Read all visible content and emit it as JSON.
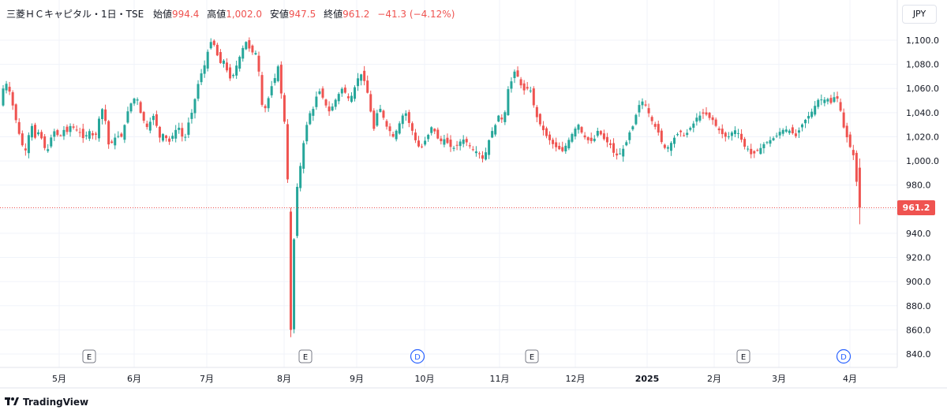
{
  "header": {
    "symbol": "三菱ＨＣキャピタル・1日・TSE",
    "open_label": "始値",
    "open": "994.4",
    "high_label": "高値",
    "high": "1,002.0",
    "low_label": "安値",
    "low": "947.5",
    "close_label": "終値",
    "close": "961.2",
    "change": "−41.3 (−4.12%)"
  },
  "currency": "JPY",
  "last_price": "961.2",
  "branding": "TradingView",
  "colors": {
    "up": "#26a69a",
    "down": "#ef5350",
    "grid": "#f0f3fa",
    "axis_text": "#131722",
    "event": "#787b86",
    "dividend": "#2962ff"
  },
  "chart_data": {
    "type": "candlestick",
    "y_ticks": [
      "1,100.0",
      "1,080.0",
      "1,060.0",
      "1,040.0",
      "1,020.0",
      "1,000.0",
      "980.0",
      "960.0",
      "940.0",
      "920.0",
      "900.0",
      "880.0",
      "860.0",
      "840.0"
    ],
    "ylim": [
      835,
      1108
    ],
    "x_ticks": [
      "5月",
      "6月",
      "7月",
      "8月",
      "9月",
      "10月",
      "11月",
      "12月",
      "2025",
      "2月",
      "3月",
      "4月"
    ],
    "last_price_line": 961.2,
    "path_points": [
      [
        0,
        1046
      ],
      [
        6,
        1060
      ],
      [
        10,
        1064
      ],
      [
        15,
        1056
      ],
      [
        20,
        1040
      ],
      [
        26,
        1023
      ],
      [
        30,
        1014
      ],
      [
        33,
        1004
      ],
      [
        37,
        1018
      ],
      [
        42,
        1030
      ],
      [
        47,
        1018
      ],
      [
        52,
        1026
      ],
      [
        57,
        1012
      ],
      [
        62,
        1008
      ],
      [
        67,
        1020
      ],
      [
        72,
        1026
      ],
      [
        77,
        1018
      ],
      [
        82,
        1026
      ],
      [
        87,
        1024
      ],
      [
        92,
        1030
      ],
      [
        97,
        1026
      ],
      [
        103,
        1024
      ],
      [
        108,
        1018
      ],
      [
        112,
        1022
      ],
      [
        117,
        1026
      ],
      [
        121,
        1018
      ],
      [
        125,
        1024
      ],
      [
        130,
        1046
      ],
      [
        135,
        1036
      ],
      [
        140,
        1012
      ],
      [
        145,
        1016
      ],
      [
        150,
        1022
      ],
      [
        155,
        1018
      ],
      [
        160,
        1030
      ],
      [
        165,
        1044
      ],
      [
        170,
        1050
      ],
      [
        175,
        1054
      ],
      [
        180,
        1040
      ],
      [
        185,
        1032
      ],
      [
        190,
        1026
      ],
      [
        195,
        1040
      ],
      [
        200,
        1030
      ],
      [
        205,
        1018
      ],
      [
        210,
        1024
      ],
      [
        215,
        1014
      ],
      [
        220,
        1020
      ],
      [
        225,
        1026
      ],
      [
        230,
        1028
      ],
      [
        235,
        1014
      ],
      [
        240,
        1030
      ],
      [
        245,
        1040
      ],
      [
        250,
        1054
      ],
      [
        255,
        1070
      ],
      [
        260,
        1076
      ],
      [
        265,
        1090
      ],
      [
        270,
        1100
      ],
      [
        275,
        1094
      ],
      [
        280,
        1080
      ],
      [
        285,
        1084
      ],
      [
        290,
        1074
      ],
      [
        295,
        1066
      ],
      [
        300,
        1076
      ],
      [
        305,
        1085
      ],
      [
        310,
        1094
      ],
      [
        315,
        1100
      ],
      [
        320,
        1088
      ],
      [
        325,
        1093
      ],
      [
        330,
        1074
      ],
      [
        335,
        1040
      ],
      [
        340,
        1046
      ],
      [
        345,
        1060
      ],
      [
        350,
        1068
      ],
      [
        355,
        1080
      ],
      [
        360,
        1044
      ],
      [
        365,
        1020
      ],
      [
        368,
        947
      ],
      [
        372,
        870
      ],
      [
        376,
        972
      ],
      [
        380,
        982
      ],
      [
        385,
        1008
      ],
      [
        390,
        1028
      ],
      [
        395,
        1040
      ],
      [
        400,
        1044
      ],
      [
        405,
        1060
      ],
      [
        410,
        1054
      ],
      [
        415,
        1046
      ],
      [
        420,
        1040
      ],
      [
        425,
        1048
      ],
      [
        430,
        1054
      ],
      [
        435,
        1060
      ],
      [
        440,
        1056
      ],
      [
        445,
        1050
      ],
      [
        450,
        1058
      ],
      [
        455,
        1068
      ],
      [
        460,
        1072
      ],
      [
        465,
        1064
      ],
      [
        470,
        1050
      ],
      [
        475,
        1024
      ],
      [
        480,
        1040
      ],
      [
        485,
        1044
      ],
      [
        490,
        1030
      ],
      [
        495,
        1026
      ],
      [
        500,
        1020
      ],
      [
        505,
        1026
      ],
      [
        510,
        1034
      ],
      [
        515,
        1042
      ],
      [
        520,
        1032
      ],
      [
        525,
        1024
      ],
      [
        530,
        1014
      ],
      [
        535,
        1010
      ],
      [
        540,
        1016
      ],
      [
        545,
        1022
      ],
      [
        550,
        1030
      ],
      [
        555,
        1020
      ],
      [
        560,
        1016
      ],
      [
        565,
        1018
      ],
      [
        570,
        1014
      ],
      [
        575,
        1010
      ],
      [
        580,
        1012
      ],
      [
        585,
        1016
      ],
      [
        590,
        1018
      ],
      [
        595,
        1014
      ],
      [
        600,
        1010
      ],
      [
        605,
        1008
      ],
      [
        610,
        1006
      ],
      [
        615,
        1000
      ],
      [
        620,
        1014
      ],
      [
        625,
        1024
      ],
      [
        630,
        1030
      ],
      [
        635,
        1040
      ],
      [
        640,
        1030
      ],
      [
        645,
        1058
      ],
      [
        650,
        1066
      ],
      [
        655,
        1076
      ],
      [
        660,
        1066
      ],
      [
        665,
        1058
      ],
      [
        670,
        1060
      ],
      [
        675,
        1058
      ],
      [
        680,
        1040
      ],
      [
        685,
        1032
      ],
      [
        690,
        1026
      ],
      [
        695,
        1020
      ],
      [
        700,
        1016
      ],
      [
        705,
        1012
      ],
      [
        710,
        1010
      ],
      [
        715,
        1008
      ],
      [
        720,
        1014
      ],
      [
        725,
        1020
      ],
      [
        730,
        1026
      ],
      [
        735,
        1030
      ],
      [
        740,
        1022
      ],
      [
        745,
        1018
      ],
      [
        750,
        1016
      ],
      [
        755,
        1018
      ],
      [
        760,
        1026
      ],
      [
        765,
        1020
      ],
      [
        770,
        1016
      ],
      [
        775,
        1014
      ],
      [
        780,
        1006
      ],
      [
        785,
        1004
      ],
      [
        790,
        1008
      ],
      [
        795,
        1014
      ],
      [
        800,
        1024
      ],
      [
        805,
        1030
      ],
      [
        810,
        1044
      ],
      [
        815,
        1050
      ],
      [
        820,
        1046
      ],
      [
        825,
        1038
      ],
      [
        830,
        1030
      ],
      [
        835,
        1026
      ],
      [
        840,
        1016
      ],
      [
        845,
        1010
      ],
      [
        850,
        1012
      ],
      [
        855,
        1018
      ],
      [
        860,
        1022
      ],
      [
        865,
        1024
      ],
      [
        870,
        1020
      ],
      [
        875,
        1026
      ],
      [
        880,
        1030
      ],
      [
        885,
        1036
      ],
      [
        890,
        1038
      ],
      [
        895,
        1040
      ],
      [
        900,
        1036
      ],
      [
        905,
        1034
      ],
      [
        910,
        1028
      ],
      [
        915,
        1024
      ],
      [
        920,
        1020
      ],
      [
        925,
        1020
      ],
      [
        930,
        1024
      ],
      [
        935,
        1026
      ],
      [
        940,
        1020
      ],
      [
        945,
        1012
      ],
      [
        950,
        1010
      ],
      [
        955,
        1004
      ],
      [
        960,
        1008
      ],
      [
        965,
        1010
      ],
      [
        970,
        1014
      ],
      [
        975,
        1016
      ],
      [
        980,
        1018
      ],
      [
        985,
        1020
      ],
      [
        990,
        1024
      ],
      [
        995,
        1026
      ],
      [
        1000,
        1026
      ],
      [
        1005,
        1024
      ],
      [
        1010,
        1020
      ],
      [
        1015,
        1026
      ],
      [
        1020,
        1032
      ],
      [
        1025,
        1036
      ],
      [
        1030,
        1040
      ],
      [
        1035,
        1046
      ],
      [
        1040,
        1052
      ],
      [
        1045,
        1050
      ],
      [
        1050,
        1052
      ],
      [
        1055,
        1048
      ],
      [
        1060,
        1054
      ],
      [
        1065,
        1050
      ],
      [
        1070,
        1030
      ],
      [
        1075,
        1020
      ],
      [
        1080,
        1010
      ],
      [
        1085,
        1002
      ],
      [
        1090,
        961
      ]
    ],
    "event_markers": [
      {
        "label": "E",
        "type": "earnings"
      },
      {
        "label": "E",
        "type": "earnings"
      },
      {
        "label": "D",
        "type": "dividend"
      },
      {
        "label": "E",
        "type": "earnings"
      },
      {
        "label": "E",
        "type": "earnings"
      },
      {
        "label": "D",
        "type": "dividend"
      }
    ]
  }
}
